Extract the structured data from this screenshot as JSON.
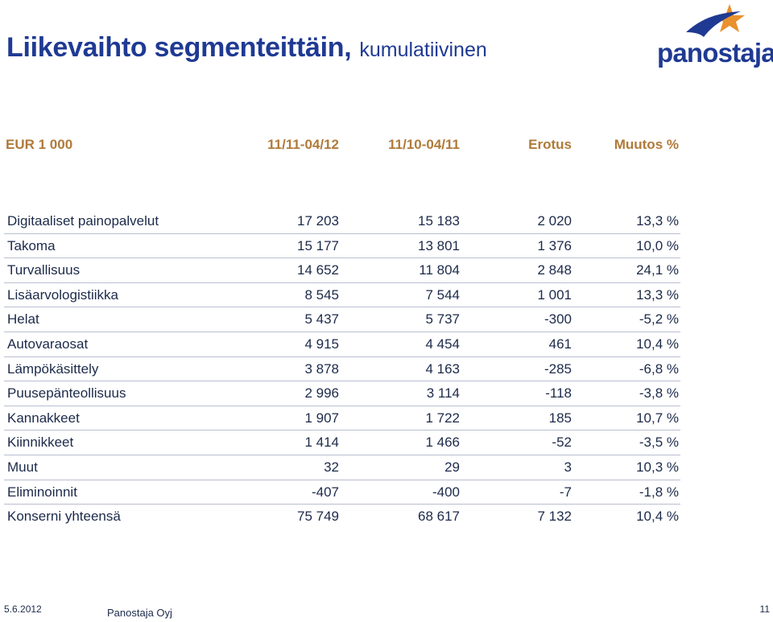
{
  "title": {
    "main": "Liikevaihto segmenteittäin,",
    "sub": "kumulatiivinen"
  },
  "logo": {
    "text": "panostaja",
    "colors": {
      "blue": "#1f3a93",
      "orange": "#e8912d"
    }
  },
  "table": {
    "headers": [
      "EUR 1 000",
      "11/11-04/12",
      "11/10-04/11",
      "Erotus",
      "Muutos %"
    ],
    "rows": [
      {
        "label": "Digitaaliset painopalvelut",
        "values": [
          "17 203",
          "15 183",
          "2 020",
          "13,3 %"
        ]
      },
      {
        "label": "Takoma",
        "values": [
          "15 177",
          "13 801",
          "1 376",
          "10,0 %"
        ]
      },
      {
        "label": "Turvallisuus",
        "values": [
          "14 652",
          "11 804",
          "2 848",
          "24,1 %"
        ]
      },
      {
        "label": "Lisäarvologistiikka",
        "values": [
          "8 545",
          "7 544",
          "1 001",
          "13,3 %"
        ]
      },
      {
        "label": "Helat",
        "values": [
          "5 437",
          "5 737",
          "-300",
          "-5,2 %"
        ]
      },
      {
        "label": "Autovaraosat",
        "values": [
          "4 915",
          "4 454",
          "461",
          "10,4 %"
        ]
      },
      {
        "label": "Lämpökäsittely",
        "values": [
          "3 878",
          "4 163",
          "-285",
          "-6,8 %"
        ]
      },
      {
        "label": "Puusepänteollisuus",
        "values": [
          "2 996",
          "3 114",
          "-118",
          "-3,8 %"
        ]
      },
      {
        "label": "Kannakkeet",
        "values": [
          "1 907",
          "1 722",
          "185",
          "10,7 %"
        ]
      },
      {
        "label": "Kiinnikkeet",
        "values": [
          "1 414",
          "1 466",
          "-52",
          "-3,5 %"
        ]
      },
      {
        "label": "Muut",
        "values": [
          "32",
          "29",
          "3",
          "10,3 %"
        ]
      },
      {
        "label": "Eliminoinnit",
        "values": [
          "-407",
          "-400",
          "-7",
          "-1,8 %"
        ]
      },
      {
        "label": "Konserni yhteensä",
        "values": [
          "75 749",
          "68 617",
          "7 132",
          "10,4 %"
        ]
      }
    ]
  },
  "footer": {
    "date": "5.6.2012",
    "company": "Panostaja Oyj",
    "page": "11"
  }
}
